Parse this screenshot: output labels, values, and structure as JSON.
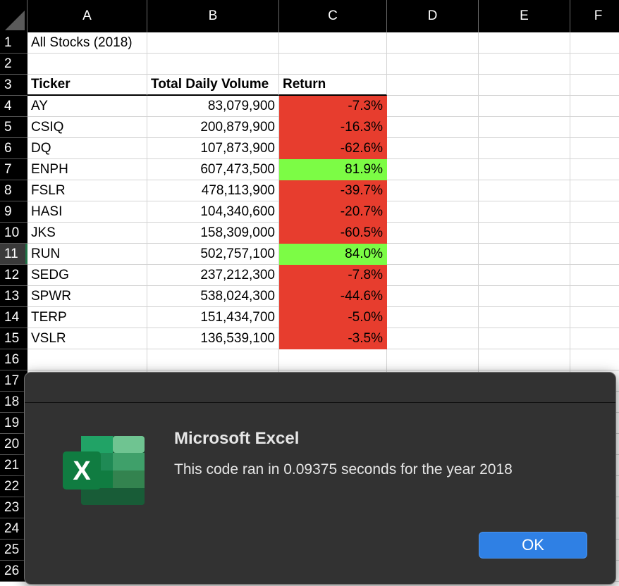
{
  "columns": [
    "A",
    "B",
    "C",
    "D",
    "E",
    "F"
  ],
  "rows": [
    "1",
    "2",
    "3",
    "4",
    "5",
    "6",
    "7",
    "8",
    "9",
    "10",
    "11",
    "12",
    "13",
    "14",
    "15",
    "16",
    "17",
    "18",
    "19",
    "20",
    "21",
    "22",
    "23",
    "24",
    "25",
    "26"
  ],
  "cells": {
    "a1": "All Stocks (2018)",
    "headers": {
      "ticker": "Ticker",
      "volume": "Total Daily Volume",
      "return": "Return"
    }
  },
  "table": [
    {
      "ticker": "AY",
      "volume": "83,079,900",
      "return": "-7.3%",
      "positive": false
    },
    {
      "ticker": "CSIQ",
      "volume": "200,879,900",
      "return": "-16.3%",
      "positive": false
    },
    {
      "ticker": "DQ",
      "volume": "107,873,900",
      "return": "-62.6%",
      "positive": false
    },
    {
      "ticker": "ENPH",
      "volume": "607,473,500",
      "return": "81.9%",
      "positive": true
    },
    {
      "ticker": "FSLR",
      "volume": "478,113,900",
      "return": "-39.7%",
      "positive": false
    },
    {
      "ticker": "HASI",
      "volume": "104,340,600",
      "return": "-20.7%",
      "positive": false
    },
    {
      "ticker": "JKS",
      "volume": "158,309,000",
      "return": "-60.5%",
      "positive": false
    },
    {
      "ticker": "RUN",
      "volume": "502,757,100",
      "return": "84.0%",
      "positive": true
    },
    {
      "ticker": "SEDG",
      "volume": "237,212,300",
      "return": "-7.8%",
      "positive": false
    },
    {
      "ticker": "SPWR",
      "volume": "538,024,300",
      "return": "-44.6%",
      "positive": false
    },
    {
      "ticker": "TERP",
      "volume": "151,434,700",
      "return": "-5.0%",
      "positive": false
    },
    {
      "ticker": "VSLR",
      "volume": "136,539,100",
      "return": "-3.5%",
      "positive": false
    }
  ],
  "selected_row": "11",
  "dialog": {
    "title": "Microsoft Excel",
    "message": "This code ran in 0.09375 seconds for the year 2018",
    "ok_label": "OK",
    "icon": "excel-icon",
    "icon_letter": "X"
  },
  "colors": {
    "negative": "#e73d2e",
    "positive": "#7cfc45",
    "ok_button": "#2f80e4",
    "excel_green": "#1e7145"
  }
}
